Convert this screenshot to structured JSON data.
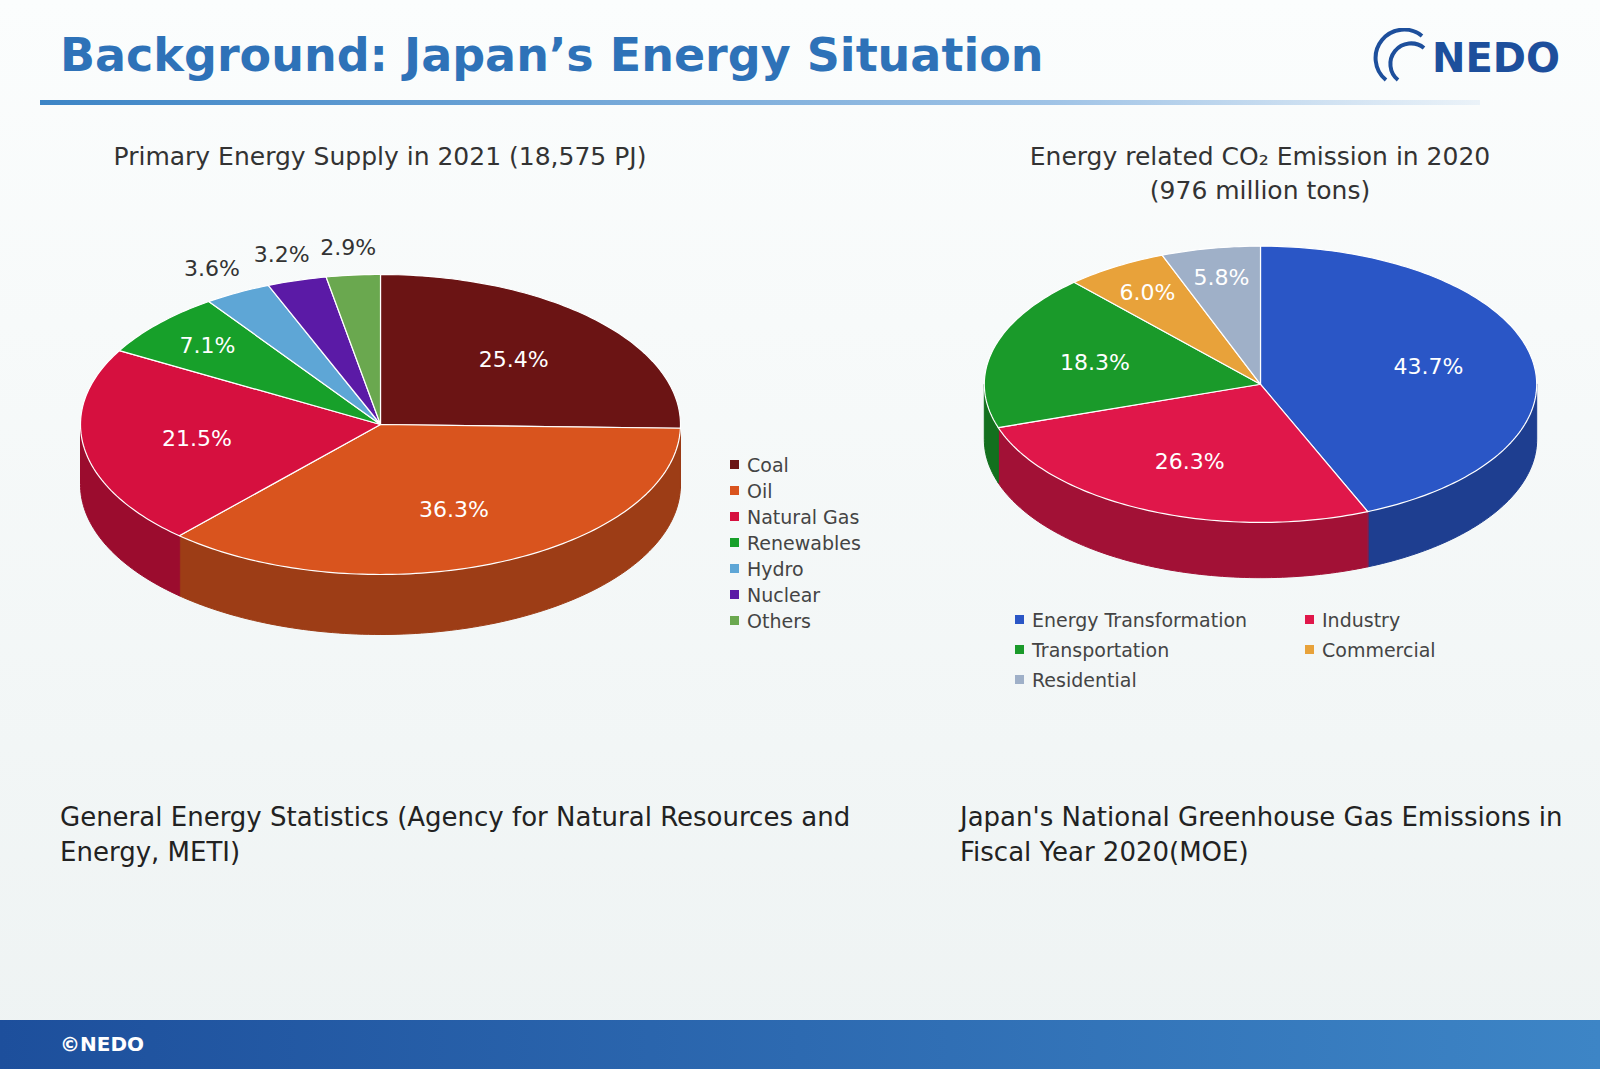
{
  "slide": {
    "title": "Background: Japan’s Energy Situation",
    "logo": "NEDO",
    "footer": "©NEDO"
  },
  "chart_data": [
    {
      "type": "pie",
      "title": "Primary Energy Supply in 2021 (18,575 PJ)",
      "categories": [
        "Coal",
        "Oil",
        "Natural Gas",
        "Renewables",
        "Hydro",
        "Nuclear",
        "Others"
      ],
      "values": [
        25.4,
        36.3,
        21.5,
        7.1,
        3.6,
        3.2,
        2.9
      ],
      "value_labels": [
        "25.4%",
        "36.3%",
        "21.5%",
        "7.1%",
        "3.6%",
        "3.2%",
        "2.9%"
      ],
      "colors": [
        "#6b1414",
        "#d9541e",
        "#d6103f",
        "#17a02a",
        "#5ea6d6",
        "#5b1aa6",
        "#6aa84f"
      ],
      "data_labels": true,
      "legend": "right",
      "caption": "General Energy Statistics (Agency for Natural Resources and Energy, METI)"
    },
    {
      "type": "pie",
      "title": "Energy related CO₂ Emission in 2020",
      "subtitle": "(976 million tons)",
      "categories": [
        "Energy Transformation",
        "Industry",
        "Transportation",
        "Commercial",
        "Residential"
      ],
      "values": [
        43.7,
        26.3,
        18.3,
        6.0,
        5.8
      ],
      "value_labels": [
        "43.7%",
        "26.3%",
        "18.3%",
        "6.0%",
        "5.8%"
      ],
      "colors": [
        "#2a56c6",
        "#e0174a",
        "#1a9a2a",
        "#e8a23a",
        "#9fb0c8"
      ],
      "data_labels": true,
      "legend": "bottom",
      "caption": "Japan's National Greenhouse Gas Emissions in Fiscal Year 2020(MOE)"
    }
  ]
}
